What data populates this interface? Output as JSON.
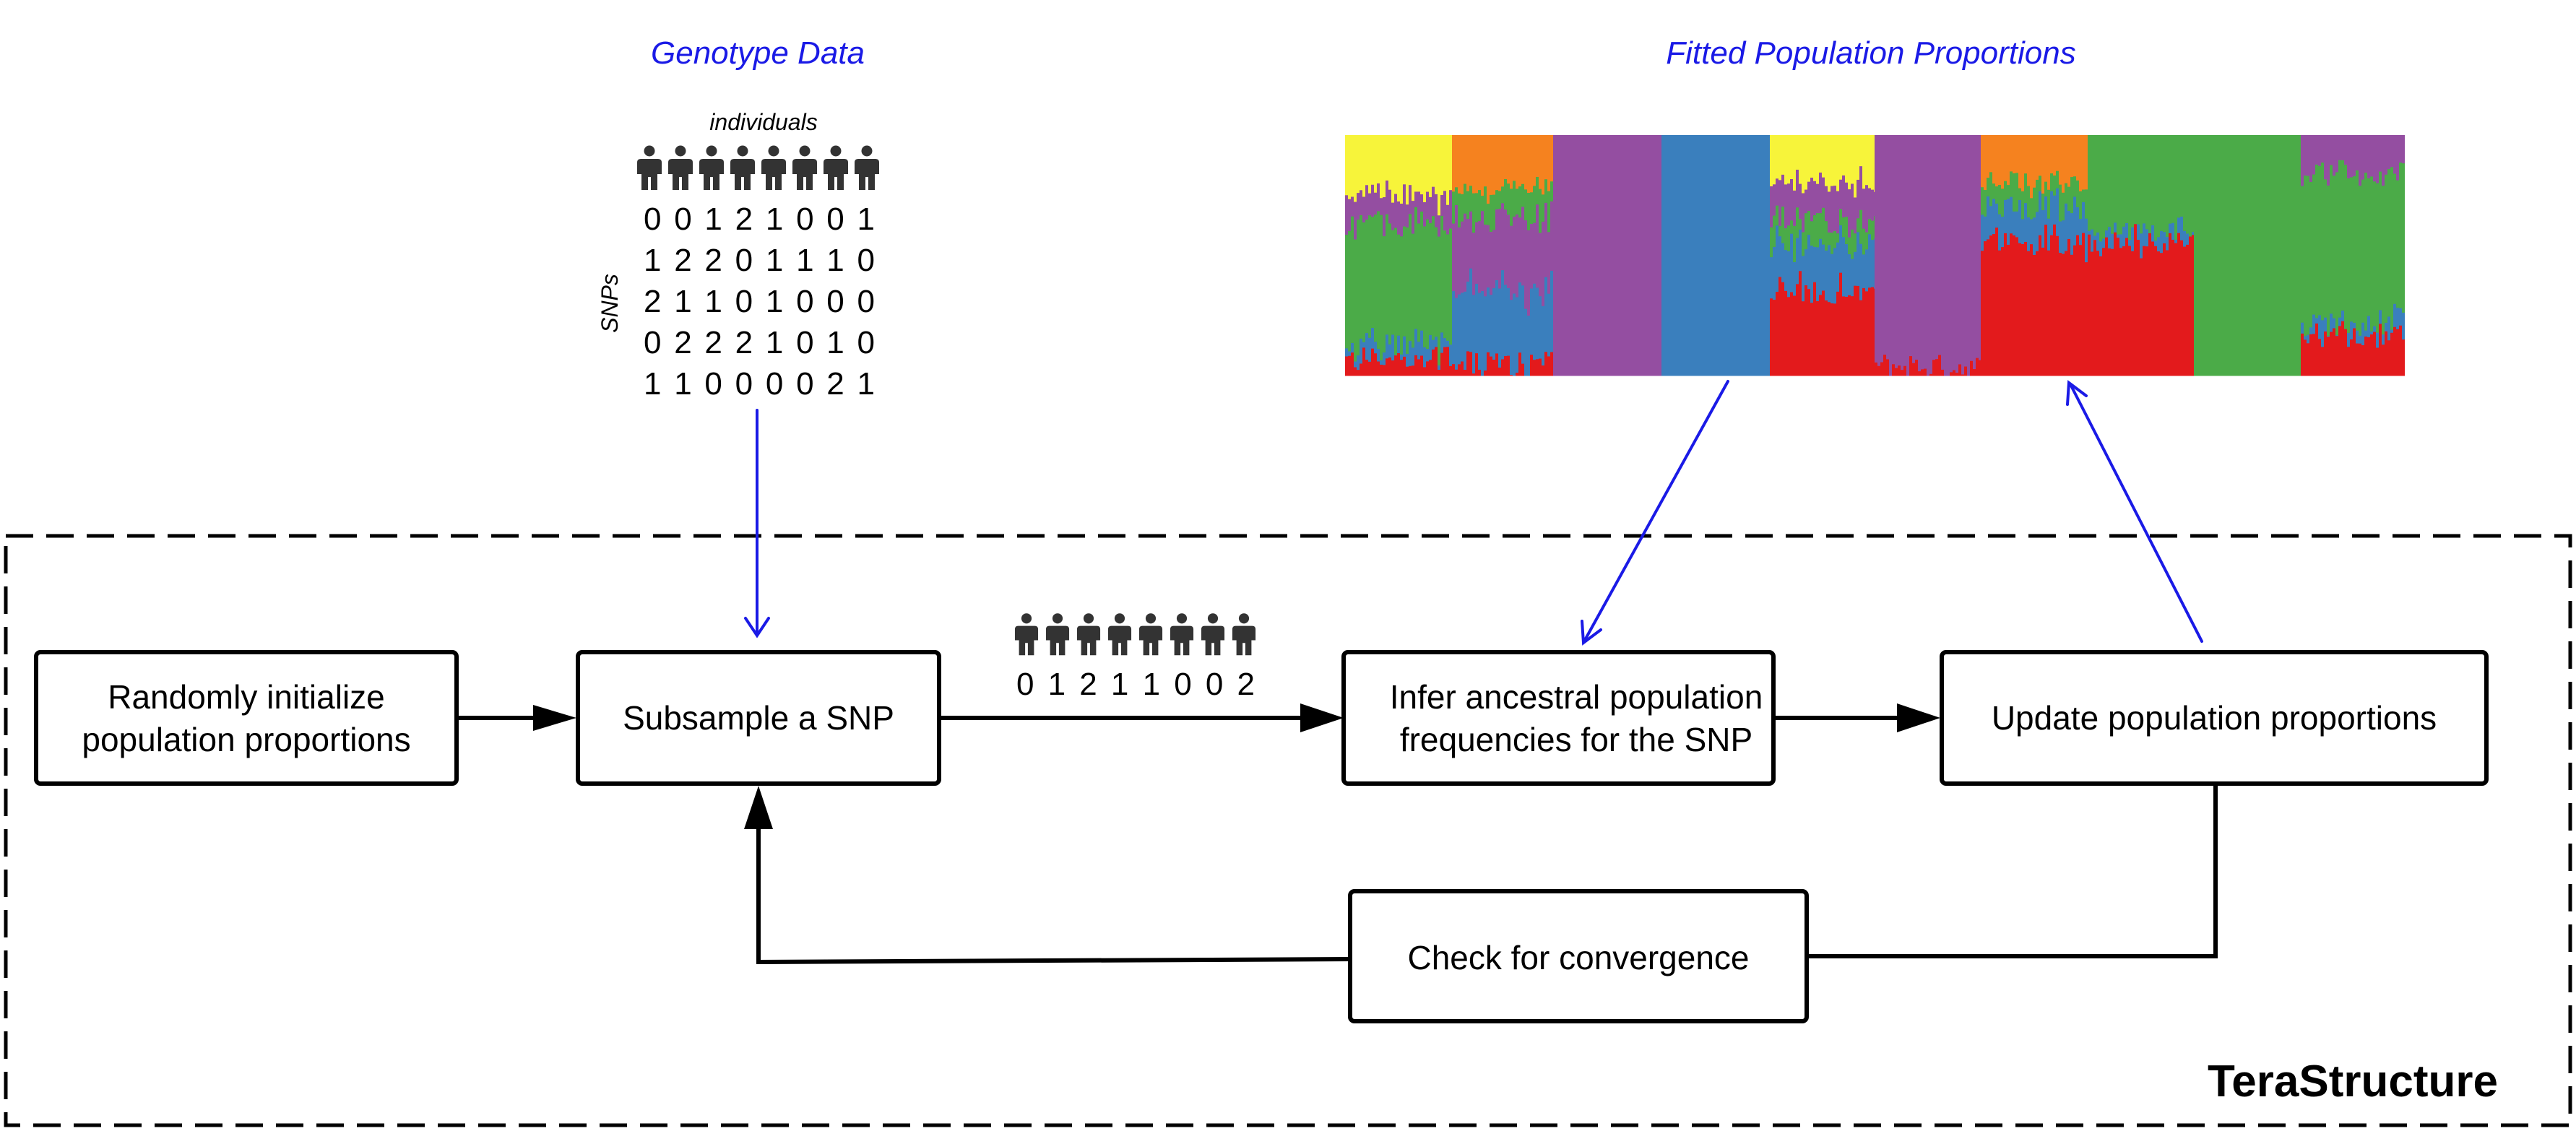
{
  "colors": {
    "accent_blue": "#1a1ae6",
    "yellow": "#f7f43a",
    "orange": "#f5821f",
    "purple": "#944ea1",
    "blue": "#3a7fbd",
    "red": "#e31a1c",
    "green": "#4bab48",
    "person": "#333333"
  },
  "genotype": {
    "title": "Genotype Data",
    "individuals_label": "individuals",
    "snps_label": "SNPs",
    "rows": [
      "0 0 1 2 1 0 0 1",
      "1 2 2 0 1 1 1 0",
      "2 1 1 0 1 0 0 0",
      "0 2 2 2 1 0 1 0",
      "1 1 0 0 0 0 2 1"
    ]
  },
  "fitted": {
    "title": "Fitted Population Proportions"
  },
  "boxes": {
    "init": [
      "Randomly initialize",
      "population proportions"
    ],
    "subsample": [
      "Subsample a SNP"
    ],
    "infer": [
      "Infer ancestral population",
      "frequencies for the SNP"
    ],
    "update": [
      "Update population proportions"
    ],
    "converge": [
      "Check for convergence"
    ]
  },
  "snp_sample": {
    "values": "0 1 2 1 1 0 0 2"
  },
  "brand": "TeraStructure"
}
